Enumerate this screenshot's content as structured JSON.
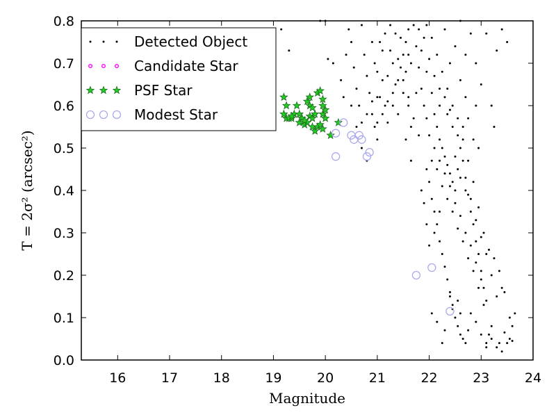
{
  "chart_data": {
    "type": "scatter",
    "xlabel": "Magnitude",
    "ylabel": "T = 2σ² (arcsec²)",
    "xlim": [
      15.3,
      24.0
    ],
    "ylim": [
      0.0,
      0.8
    ],
    "x_ticks": [
      16,
      17,
      18,
      19,
      20,
      21,
      22,
      23,
      24
    ],
    "y_ticks": [
      0.0,
      0.1,
      0.2,
      0.3,
      0.4,
      0.5,
      0.6,
      0.7,
      0.8
    ],
    "grid": false,
    "legend_position": "top-left",
    "series": [
      {
        "name": "Detected Object",
        "marker": "dot",
        "color": "#000000",
        "points": [
          [
            19.3,
            0.73
          ],
          [
            19.15,
            0.78
          ],
          [
            19.9,
            0.8
          ],
          [
            20.0,
            0.8
          ],
          [
            20.05,
            0.71
          ],
          [
            20.15,
            0.7
          ],
          [
            20.3,
            0.66
          ],
          [
            20.35,
            0.62
          ],
          [
            20.45,
            0.78
          ],
          [
            20.5,
            0.75
          ],
          [
            20.55,
            0.69
          ],
          [
            20.6,
            0.64
          ],
          [
            20.65,
            0.6
          ],
          [
            20.7,
            0.79
          ],
          [
            20.75,
            0.72
          ],
          [
            20.8,
            0.67
          ],
          [
            20.85,
            0.63
          ],
          [
            20.9,
            0.58
          ],
          [
            20.95,
            0.55
          ],
          [
            21.0,
            0.52
          ],
          [
            20.4,
            0.72
          ],
          [
            20.5,
            0.6
          ],
          [
            20.6,
            0.55
          ],
          [
            20.7,
            0.5
          ],
          [
            20.8,
            0.47
          ],
          [
            20.9,
            0.75
          ],
          [
            21.0,
            0.68
          ],
          [
            21.05,
            0.62
          ],
          [
            21.1,
            0.73
          ],
          [
            21.15,
            0.6
          ],
          [
            21.2,
            0.56
          ],
          [
            21.25,
            0.79
          ],
          [
            21.3,
            0.7
          ],
          [
            21.35,
            0.65
          ],
          [
            21.4,
            0.58
          ],
          [
            21.45,
            0.76
          ],
          [
            21.5,
            0.72
          ],
          [
            21.55,
            0.68
          ],
          [
            21.6,
            0.62
          ],
          [
            21.65,
            0.55
          ],
          [
            21.7,
            0.79
          ],
          [
            21.75,
            0.74
          ],
          [
            21.8,
            0.69
          ],
          [
            21.85,
            0.64
          ],
          [
            21.9,
            0.6
          ],
          [
            21.95,
            0.57
          ],
          [
            22.0,
            0.53
          ],
          [
            21.6,
            0.72
          ],
          [
            21.5,
            0.66
          ],
          [
            21.4,
            0.71
          ],
          [
            21.3,
            0.6
          ],
          [
            21.2,
            0.67
          ],
          [
            21.1,
            0.66
          ],
          [
            21.0,
            0.62
          ],
          [
            20.9,
            0.61
          ],
          [
            20.8,
            0.58
          ],
          [
            20.7,
            0.56
          ],
          [
            20.95,
            0.7
          ],
          [
            21.05,
            0.75
          ],
          [
            21.15,
            0.77
          ],
          [
            21.25,
            0.73
          ],
          [
            21.35,
            0.77
          ],
          [
            21.45,
            0.69
          ],
          [
            21.55,
            0.75
          ],
          [
            21.65,
            0.7
          ],
          [
            21.75,
            0.63
          ],
          [
            21.85,
            0.73
          ],
          [
            21.95,
            0.68
          ],
          [
            22.05,
            0.63
          ],
          [
            22.1,
            0.58
          ],
          [
            22.15,
            0.55
          ],
          [
            22.2,
            0.52
          ],
          [
            22.25,
            0.5
          ],
          [
            22.3,
            0.48
          ],
          [
            22.35,
            0.46
          ],
          [
            22.4,
            0.44
          ],
          [
            22.45,
            0.42
          ],
          [
            22.5,
            0.4
          ],
          [
            22.55,
            0.45
          ],
          [
            22.6,
            0.5
          ],
          [
            22.65,
            0.47
          ],
          [
            22.7,
            0.43
          ],
          [
            22.75,
            0.39
          ],
          [
            22.8,
            0.35
          ],
          [
            22.85,
            0.32
          ],
          [
            22.9,
            0.28
          ],
          [
            22.95,
            0.25
          ],
          [
            23.0,
            0.21
          ],
          [
            23.05,
            0.17
          ],
          [
            23.1,
            0.14
          ],
          [
            22.1,
            0.5
          ],
          [
            22.2,
            0.47
          ],
          [
            22.3,
            0.44
          ],
          [
            22.4,
            0.41
          ],
          [
            22.5,
            0.37
          ],
          [
            22.6,
            0.34
          ],
          [
            22.7,
            0.3
          ],
          [
            22.8,
            0.27
          ],
          [
            22.9,
            0.23
          ],
          [
            23.0,
            0.19
          ],
          [
            22.15,
            0.45
          ],
          [
            22.25,
            0.41
          ],
          [
            22.35,
            0.38
          ],
          [
            22.45,
            0.35
          ],
          [
            22.55,
            0.31
          ],
          [
            22.65,
            0.28
          ],
          [
            22.75,
            0.24
          ],
          [
            22.85,
            0.21
          ],
          [
            22.95,
            0.17
          ],
          [
            23.05,
            0.13
          ],
          [
            22.0,
            0.42
          ],
          [
            22.05,
            0.38
          ],
          [
            22.1,
            0.35
          ],
          [
            22.15,
            0.32
          ],
          [
            22.2,
            0.28
          ],
          [
            22.25,
            0.25
          ],
          [
            22.3,
            0.22
          ],
          [
            22.35,
            0.19
          ],
          [
            22.4,
            0.16
          ],
          [
            22.45,
            0.13
          ],
          [
            22.5,
            0.1
          ],
          [
            22.55,
            0.08
          ],
          [
            22.6,
            0.06
          ],
          [
            22.65,
            0.05
          ],
          [
            22.7,
            0.04
          ],
          [
            22.75,
            0.07
          ],
          [
            22.8,
            0.11
          ],
          [
            22.9,
            0.09
          ],
          [
            23.0,
            0.06
          ],
          [
            23.1,
            0.04
          ],
          [
            23.2,
            0.05
          ],
          [
            23.3,
            0.03
          ],
          [
            23.4,
            0.02
          ],
          [
            23.5,
            0.04
          ],
          [
            23.6,
            0.08
          ],
          [
            23.65,
            0.11
          ],
          [
            23.55,
            0.05
          ],
          [
            23.45,
            0.16
          ],
          [
            23.35,
            0.21
          ],
          [
            23.25,
            0.24
          ],
          [
            23.15,
            0.26
          ],
          [
            23.05,
            0.3
          ],
          [
            22.95,
            0.36
          ],
          [
            22.85,
            0.42
          ],
          [
            22.75,
            0.47
          ],
          [
            22.65,
            0.52
          ],
          [
            22.55,
            0.57
          ],
          [
            22.45,
            0.6
          ],
          [
            22.35,
            0.64
          ],
          [
            22.25,
            0.68
          ],
          [
            22.15,
            0.72
          ],
          [
            22.05,
            0.76
          ],
          [
            21.95,
            0.79
          ],
          [
            22.3,
            0.78
          ],
          [
            22.5,
            0.74
          ],
          [
            22.7,
            0.72
          ],
          [
            22.9,
            0.7
          ],
          [
            23.1,
            0.77
          ],
          [
            23.3,
            0.73
          ],
          [
            23.5,
            0.75
          ],
          [
            23.4,
            0.78
          ],
          [
            22.6,
            0.8
          ],
          [
            22.8,
            0.77
          ],
          [
            23.0,
            0.65
          ],
          [
            23.2,
            0.6
          ],
          [
            23.25,
            0.55
          ],
          [
            22.7,
            0.62
          ],
          [
            22.9,
            0.6
          ],
          [
            22.6,
            0.66
          ],
          [
            22.4,
            0.7
          ],
          [
            22.2,
            0.6
          ],
          [
            22.35,
            0.58
          ],
          [
            22.45,
            0.55
          ],
          [
            22.55,
            0.53
          ],
          [
            22.65,
            0.55
          ],
          [
            22.75,
            0.57
          ],
          [
            22.85,
            0.52
          ],
          [
            22.95,
            0.5
          ],
          [
            22.5,
            0.48
          ],
          [
            22.6,
            0.43
          ],
          [
            22.7,
            0.4
          ],
          [
            22.8,
            0.38
          ],
          [
            22.9,
            0.33
          ],
          [
            23.0,
            0.29
          ],
          [
            23.1,
            0.25
          ],
          [
            23.2,
            0.2
          ],
          [
            23.3,
            0.15
          ],
          [
            23.4,
            0.17
          ],
          [
            22.2,
            0.35
          ],
          [
            22.1,
            0.3
          ],
          [
            22.0,
            0.27
          ],
          [
            21.95,
            0.32
          ],
          [
            21.9,
            0.37
          ],
          [
            21.85,
            0.4
          ],
          [
            21.95,
            0.45
          ],
          [
            22.05,
            0.47
          ],
          [
            21.8,
            0.53
          ],
          [
            21.7,
            0.57
          ],
          [
            21.6,
            0.6
          ],
          [
            21.5,
            0.63
          ],
          [
            21.4,
            0.66
          ],
          [
            21.3,
            0.63
          ],
          [
            21.2,
            0.61
          ],
          [
            21.1,
            0.58
          ],
          [
            21.0,
            0.56
          ],
          [
            21.6,
            0.78
          ],
          [
            21.8,
            0.78
          ],
          [
            21.9,
            0.76
          ],
          [
            22.0,
            0.71
          ],
          [
            22.1,
            0.67
          ],
          [
            22.2,
            0.64
          ],
          [
            22.3,
            0.62
          ],
          [
            22.4,
            0.59
          ],
          [
            21.55,
            0.52
          ],
          [
            21.65,
            0.47
          ],
          [
            22.05,
            0.11
          ],
          [
            22.3,
            0.07
          ],
          [
            22.15,
            0.09
          ],
          [
            22.25,
            0.04
          ],
          [
            22.4,
            0.15
          ],
          [
            22.45,
            0.12
          ],
          [
            22.55,
            0.14
          ],
          [
            22.6,
            0.11
          ],
          [
            23.6,
            0.045
          ],
          [
            23.55,
            0.1
          ],
          [
            23.1,
            0.03
          ],
          [
            23.15,
            0.06
          ],
          [
            23.2,
            0.08
          ],
          [
            23.35,
            0.04
          ],
          [
            23.45,
            0.065
          ]
        ]
      },
      {
        "name": "Candidate Star",
        "marker": "small-circle",
        "color": "#ff00ff",
        "points": []
      },
      {
        "name": "PSF Star",
        "marker": "star",
        "color": "#22cc22",
        "points": [
          [
            19.2,
            0.62
          ],
          [
            19.25,
            0.6
          ],
          [
            19.2,
            0.58
          ],
          [
            19.25,
            0.57
          ],
          [
            19.35,
            0.57
          ],
          [
            19.4,
            0.58
          ],
          [
            19.45,
            0.6
          ],
          [
            19.5,
            0.58
          ],
          [
            19.5,
            0.56
          ],
          [
            19.55,
            0.57
          ],
          [
            19.6,
            0.555
          ],
          [
            19.65,
            0.61
          ],
          [
            19.7,
            0.6
          ],
          [
            19.7,
            0.575
          ],
          [
            19.65,
            0.56
          ],
          [
            19.75,
            0.55
          ],
          [
            19.8,
            0.54
          ],
          [
            19.75,
            0.57
          ],
          [
            19.8,
            0.58
          ],
          [
            19.85,
            0.63
          ],
          [
            19.9,
            0.635
          ],
          [
            19.95,
            0.615
          ],
          [
            19.95,
            0.58
          ],
          [
            20.0,
            0.57
          ],
          [
            19.85,
            0.55
          ],
          [
            19.9,
            0.555
          ],
          [
            19.95,
            0.545
          ],
          [
            19.7,
            0.62
          ],
          [
            19.75,
            0.595
          ],
          [
            20.0,
            0.59
          ],
          [
            19.95,
            0.6
          ],
          [
            20.1,
            0.53
          ],
          [
            20.25,
            0.56
          ],
          [
            19.3,
            0.57
          ],
          [
            19.35,
            0.575
          ],
          [
            19.6,
            0.565
          ]
        ]
      },
      {
        "name": "Modest Star",
        "marker": "open-circle",
        "color": "#aaaaee",
        "points": [
          [
            20.2,
            0.535
          ],
          [
            20.35,
            0.56
          ],
          [
            20.5,
            0.53
          ],
          [
            20.55,
            0.52
          ],
          [
            20.65,
            0.53
          ],
          [
            20.7,
            0.52
          ],
          [
            20.85,
            0.49
          ],
          [
            20.8,
            0.48
          ],
          [
            20.2,
            0.48
          ],
          [
            21.75,
            0.2
          ],
          [
            22.05,
            0.218
          ],
          [
            22.4,
            0.115
          ]
        ]
      }
    ]
  }
}
